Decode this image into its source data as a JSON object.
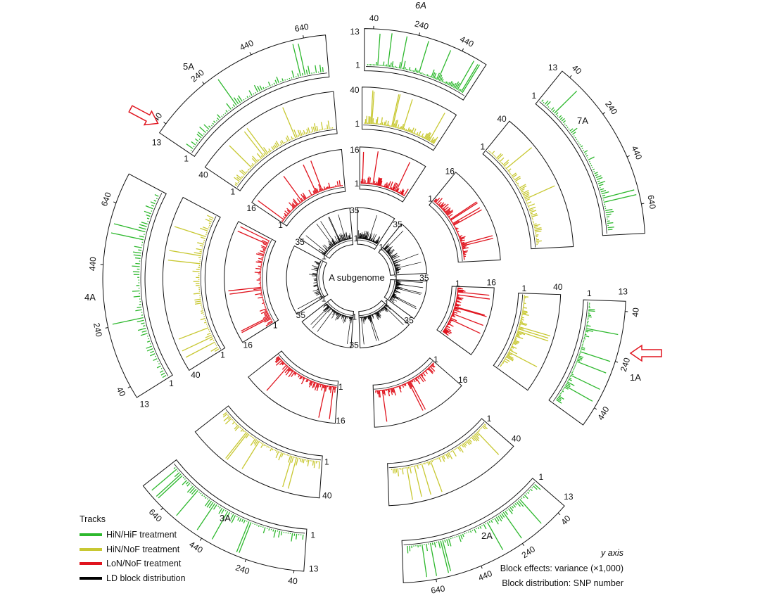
{
  "center_label": "A subgenome",
  "chromosomes": [
    {
      "name": "6A",
      "ticks": [
        "40",
        "240",
        "440"
      ]
    },
    {
      "name": "7A",
      "ticks": [
        "40",
        "240",
        "440",
        "640"
      ]
    },
    {
      "name": "1A",
      "ticks": [
        "40",
        "240",
        "440"
      ]
    },
    {
      "name": "2A",
      "ticks": [
        "40",
        "240",
        "440",
        "640"
      ]
    },
    {
      "name": "3A",
      "ticks": [
        "40",
        "240",
        "440",
        "640"
      ]
    },
    {
      "name": "4A",
      "ticks": [
        "40",
        "240",
        "440",
        "640"
      ]
    },
    {
      "name": "5A",
      "ticks": [
        "40",
        "240",
        "440",
        "640"
      ]
    }
  ],
  "tracks": [
    {
      "name": "LD block distribution",
      "color": "#000000",
      "ymin": "1",
      "ymax": "35"
    },
    {
      "name": "LoN/NoF treatment",
      "color": "#e0141e",
      "ymin": "1",
      "ymax": "16"
    },
    {
      "name": "HiN/NoF treatment",
      "color": "#c8c832",
      "ymin": "1",
      "ymax": "40"
    },
    {
      "name": "HiN/HiF treatment",
      "color": "#2db82d",
      "ymin": "1",
      "ymax": "13"
    }
  ],
  "legend": {
    "title": "Tracks",
    "items": [
      {
        "label": "HiN/HiF treatment",
        "color": "#2db82d"
      },
      {
        "label": "HiN/NoF treatment",
        "color": "#c8c832"
      },
      {
        "label": "LoN/NoF treatment",
        "color": "#e0141e"
      },
      {
        "label": "LD block distribution",
        "color": "#000000"
      }
    ]
  },
  "y_axis_note": {
    "title": "y axis",
    "line1": "Block effects: variance (×1,000)",
    "line2": "Block distribution: SNP number"
  },
  "highlighted_chromosomes": [
    "5A",
    "1A"
  ],
  "arrow_color": "#e0141e"
}
